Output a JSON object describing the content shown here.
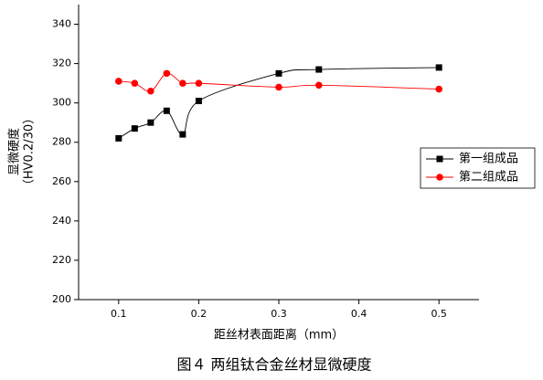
{
  "chart_data": {
    "type": "line",
    "x_label": "距丝材表面距离（mm）",
    "y_label": [
      "显微硬度",
      "（HV0.2/30）"
    ],
    "caption": "图４ 两组钛合金丝材显微硬度",
    "x": [
      0.1,
      0.12,
      0.14,
      0.16,
      0.18,
      0.2,
      0.3,
      0.35,
      0.5
    ],
    "series": [
      {
        "name": "第一组成品",
        "color": "#000000",
        "marker": "square",
        "values": [
          282,
          287,
          290,
          296,
          284,
          301,
          315,
          317,
          318
        ]
      },
      {
        "name": "第二组成品",
        "color": "#ff0000",
        "marker": "circle",
        "values": [
          311,
          310,
          306,
          315,
          310,
          310,
          308,
          309,
          307
        ]
      }
    ],
    "xlim": [
      0.05,
      0.55
    ],
    "xticks": [
      0.1,
      0.2,
      0.3,
      0.4,
      0.5
    ],
    "ylim": [
      200,
      350
    ],
    "yticks": [
      200,
      220,
      240,
      260,
      280,
      300,
      320,
      340
    ],
    "smooth": true,
    "legend": "right"
  }
}
